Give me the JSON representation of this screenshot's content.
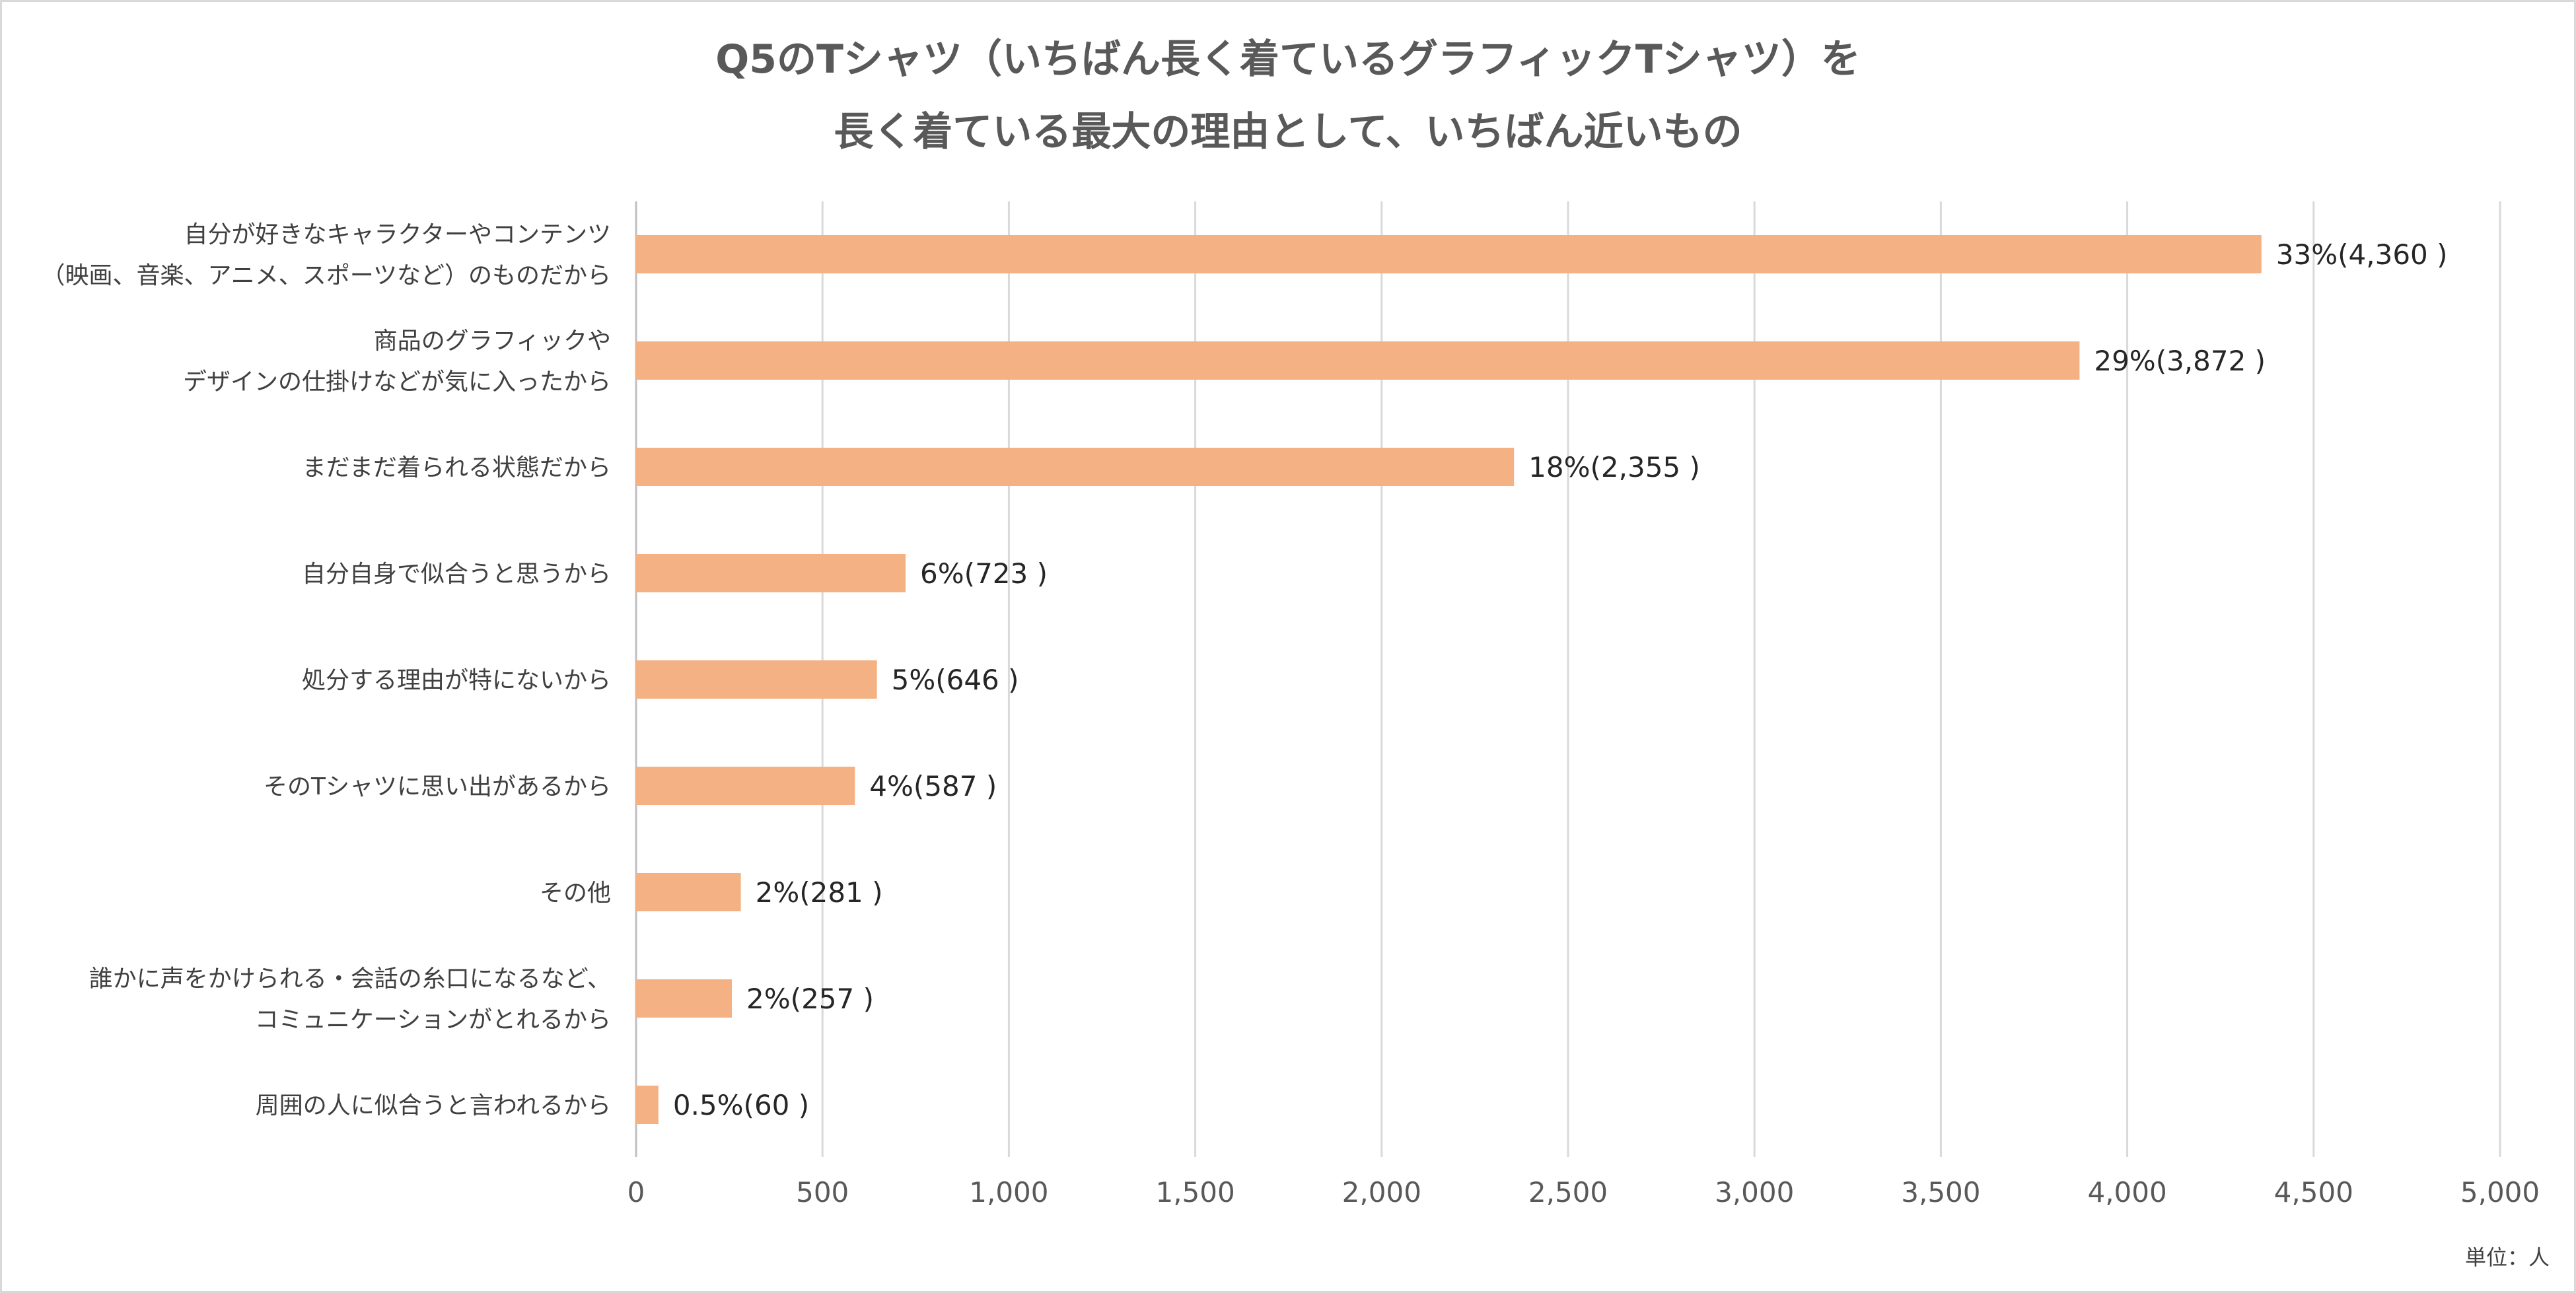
{
  "chart_data": {
    "type": "bar",
    "orientation": "horizontal",
    "title_lines": [
      "Q5のTシャツ（いちばん長く着ているグラフィックTシャツ）を",
      "長く着ている最大の理由として、いちばん近いもの"
    ],
    "categories": [
      [
        "自分が好きなキャラクターやコンテンツ",
        "（映画、音楽、アニメ、スポーツなど）のものだから"
      ],
      [
        "商品のグラフィックや",
        "デザインの仕掛けなどが気に入ったから"
      ],
      [
        "まだまだ着られる状態だから"
      ],
      [
        "自分自身で似合うと思うから"
      ],
      [
        "処分する理由が特にないから"
      ],
      [
        "そのTシャツに思い出があるから"
      ],
      [
        "その他"
      ],
      [
        "誰かに声をかけられる・会話の糸口になるなど、",
        "コミュニケーションがとれるから"
      ],
      [
        "周囲の人に似合うと言われるから"
      ]
    ],
    "values": [
      4360,
      3872,
      2355,
      723,
      646,
      587,
      281,
      257,
      60
    ],
    "value_labels": [
      "33%(4,360 )",
      "29%(3,872 )",
      "18%(2,355 )",
      "6%(723 )",
      "5%(646 )",
      "4%(587 )",
      "2%(281 )",
      "2%(257 )",
      "0.5%(60 )"
    ],
    "xlim": [
      0,
      5000
    ],
    "x_ticks": [
      0,
      500,
      1000,
      1500,
      2000,
      2500,
      3000,
      3500,
      4000,
      4500,
      5000
    ],
    "x_tick_labels": [
      "0",
      "500",
      "1,000",
      "1,500",
      "2,000",
      "2,500",
      "3,000",
      "3,500",
      "4,000",
      "4,500",
      "5,000"
    ],
    "unit_label": "単位：人",
    "grid": "vertical",
    "bar_color": "#F4B183",
    "grid_color": "#D9D9D9"
  }
}
